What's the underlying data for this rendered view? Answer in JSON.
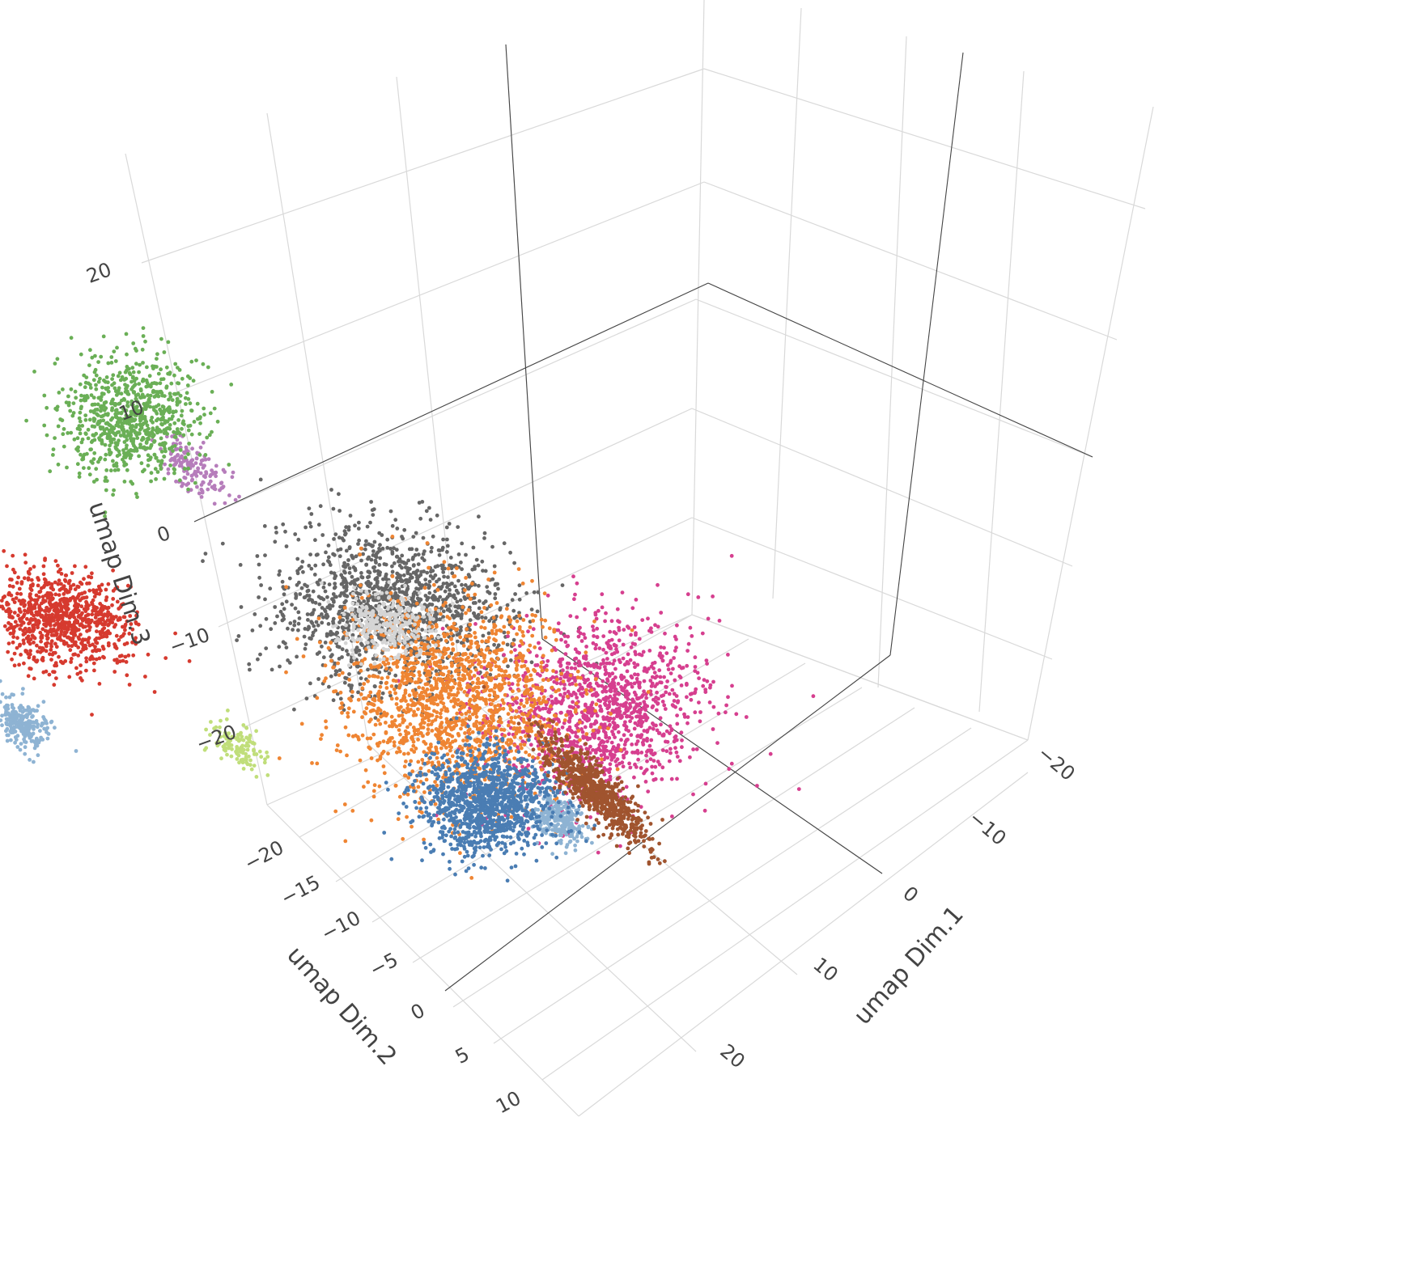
{
  "chart_data": {
    "type": "scatter3d",
    "title": "",
    "legend": "none",
    "grid": true,
    "axes": {
      "x": {
        "title": "umap Dim.1",
        "range": [
          -25,
          25
        ],
        "ticks": [
          -20,
          -10,
          0,
          10,
          20
        ]
      },
      "y": {
        "title": "umap Dim.2",
        "range": [
          -22,
          12
        ],
        "ticks": [
          -20,
          -15,
          -10,
          -5,
          0,
          5,
          10
        ]
      },
      "z": {
        "title": "umap Dim.3",
        "range": [
          -28,
          28
        ],
        "ticks": [
          -20,
          -10,
          0,
          10,
          20
        ]
      }
    },
    "tick_labels": {
      "x": [
        "−20",
        "−10",
        "0",
        "10",
        "20"
      ],
      "y": [
        "−20",
        "−15",
        "−10",
        "−5",
        "0",
        "5",
        "10"
      ],
      "z": [
        "−20",
        "−10",
        "0",
        "10",
        "20"
      ]
    },
    "clusters": [
      {
        "color": "#666666",
        "center": [
          -7,
          -12,
          12
        ],
        "spread": [
          6,
          5,
          4
        ],
        "points": 1400
      },
      {
        "color": "#d63f8f",
        "center": [
          -14,
          -4,
          6
        ],
        "spread": [
          4,
          5,
          6
        ],
        "points": 1300
      },
      {
        "color": "#ef8533",
        "center": [
          -6,
          -8,
          2
        ],
        "spread": [
          6,
          5,
          6
        ],
        "points": 1600
      },
      {
        "color": "#d5d5d5",
        "center": [
          -6,
          -12,
          10
        ],
        "spread": [
          2,
          2,
          2
        ],
        "points": 300
      },
      {
        "color": "#b67dbb",
        "center": [
          8,
          -16,
          14
        ],
        "spread": [
          3,
          1,
          1
        ],
        "points": 160
      },
      {
        "color": "#6aaf56",
        "center": [
          3,
          -22,
          24
        ],
        "spread": [
          3,
          3,
          4
        ],
        "points": 800
      },
      {
        "color": "#d63a2f",
        "center": [
          14,
          -20,
          -2
        ],
        "spread": [
          4,
          3,
          2
        ],
        "points": 900
      },
      {
        "color": "#8eb3d3",
        "center": [
          14,
          -22,
          -10
        ],
        "spread": [
          2,
          1,
          1
        ],
        "points": 260
      },
      {
        "color": "#8eb3d3",
        "center": [
          -6,
          -2,
          -10
        ],
        "spread": [
          2,
          1,
          1
        ],
        "points": 260
      },
      {
        "color": "#4a7db3",
        "center": [
          10,
          2,
          -22
        ],
        "spread": [
          3,
          3,
          3
        ],
        "points": 1200
      },
      {
        "color": "#a0542f",
        "center": [
          -2,
          2,
          -12
        ],
        "spread": [
          5,
          1,
          1
        ],
        "points": 700
      },
      {
        "color": "#c0de7a",
        "center": [
          14,
          -10,
          -16
        ],
        "spread": [
          2,
          1,
          1
        ],
        "points": 120
      }
    ]
  }
}
